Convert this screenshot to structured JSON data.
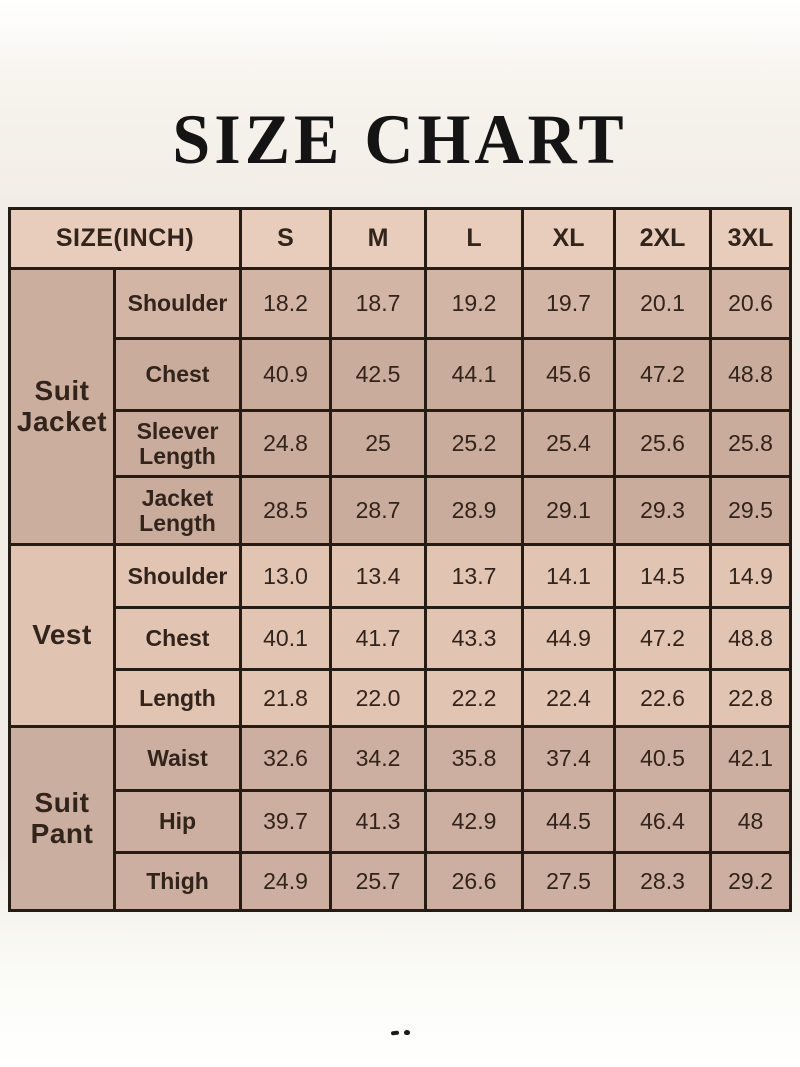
{
  "title": "SIZE CHART",
  "colors": {
    "page_bg": "#f2eee7",
    "border": "#261c16",
    "text": "#32231b",
    "cell_light": "#e2c4b3",
    "cell_dark": "#c9ac9c",
    "header_bg": "#e9cdbc"
  },
  "chart_data": {
    "type": "table",
    "title": "SIZE CHART",
    "unit_note": "SIZE(INCH)",
    "columns": [
      "SIZE(INCH)",
      "S",
      "M",
      "L",
      "XL",
      "2XL",
      "3XL"
    ],
    "groups": [
      {
        "group": "Suit Jacket",
        "rows": [
          {
            "label": "Shoulder",
            "values": [
              "18.2",
              "18.7",
              "19.2",
              "19.7",
              "20.1",
              "20.6"
            ]
          },
          {
            "label": "Chest",
            "values": [
              "40.9",
              "42.5",
              "44.1",
              "45.6",
              "47.2",
              "48.8"
            ]
          },
          {
            "label": "Sleever Length",
            "values": [
              "24.8",
              "25",
              "25.2",
              "25.4",
              "25.6",
              "25.8"
            ]
          },
          {
            "label": "Jacket Length",
            "values": [
              "28.5",
              "28.7",
              "28.9",
              "29.1",
              "29.3",
              "29.5"
            ]
          }
        ]
      },
      {
        "group": "Vest",
        "rows": [
          {
            "label": "Shoulder",
            "values": [
              "13.0",
              "13.4",
              "13.7",
              "14.1",
              "14.5",
              "14.9"
            ]
          },
          {
            "label": "Chest",
            "values": [
              "40.1",
              "41.7",
              "43.3",
              "44.9",
              "47.2",
              "48.8"
            ]
          },
          {
            "label": "Length",
            "values": [
              "21.8",
              "22.0",
              "22.2",
              "22.4",
              "22.6",
              "22.8"
            ]
          }
        ]
      },
      {
        "group": "Suit Pant",
        "rows": [
          {
            "label": "Waist",
            "values": [
              "32.6",
              "34.2",
              "35.8",
              "37.4",
              "40.5",
              "42.1"
            ]
          },
          {
            "label": "Hip",
            "values": [
              "39.7",
              "41.3",
              "42.9",
              "44.5",
              "46.4",
              "48"
            ]
          },
          {
            "label": "Thigh",
            "values": [
              "24.9",
              "25.7",
              "26.6",
              "27.5",
              "28.3",
              "29.2"
            ]
          }
        ]
      }
    ]
  }
}
